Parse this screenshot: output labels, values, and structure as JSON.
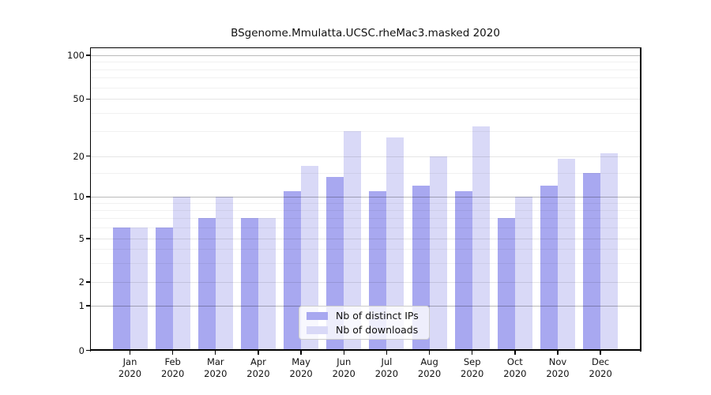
{
  "title": "BSgenome.Mmulatta.UCSC.rheMac3.masked 2020",
  "colors": {
    "distinct_ips": "#a8a8f0",
    "downloads": "#d9d9f7",
    "spine": "#000000",
    "legend_border": "#cccccc"
  },
  "legend": {
    "items": [
      {
        "label": "Nb of distinct IPs",
        "swatch": "distinct-ips-swatch"
      },
      {
        "label": "Nb of downloads",
        "swatch": "downloads-swatch"
      }
    ]
  },
  "y_axis": {
    "tick_labels": [
      "100",
      "50",
      "20",
      "10",
      "5",
      "2",
      "1",
      "0"
    ],
    "tick_values": [
      100,
      50,
      20,
      10,
      5,
      2,
      1,
      0
    ]
  },
  "x_axis": {
    "months": [
      "Jan",
      "Feb",
      "Mar",
      "Apr",
      "May",
      "Jun",
      "Jul",
      "Aug",
      "Sep",
      "Oct",
      "Nov",
      "Dec"
    ],
    "year": "2020"
  },
  "chart_data": {
    "type": "bar",
    "title": "BSgenome.Mmulatta.UCSC.rheMac3.masked 2020",
    "categories": [
      "Jan 2020",
      "Feb 2020",
      "Mar 2020",
      "Apr 2020",
      "May 2020",
      "Jun 2020",
      "Jul 2020",
      "Aug 2020",
      "Sep 2020",
      "Oct 2020",
      "Nov 2020",
      "Dec 2020"
    ],
    "series": [
      {
        "name": "Nb of distinct IPs",
        "color": "#a8a8f0",
        "values": [
          6,
          6,
          7,
          7,
          11,
          14,
          11,
          12,
          11,
          7,
          12,
          15
        ]
      },
      {
        "name": "Nb of downloads",
        "color": "#d9d9f7",
        "values": [
          6,
          10,
          10,
          7,
          17,
          30,
          27,
          20,
          32,
          10,
          19,
          21
        ]
      }
    ],
    "xlabel": "",
    "ylabel": "",
    "y_scale": "log-like (compressed below 2, includes 0 baseline)",
    "y_ticks": [
      0,
      1,
      2,
      5,
      10,
      20,
      50,
      100
    ],
    "decade_gridlines": [
      1,
      10,
      100
    ],
    "minor_gridlines": [
      3,
      4,
      6,
      7,
      8,
      9,
      15,
      30,
      40,
      60,
      70,
      80,
      90
    ],
    "ylim": [
      0,
      110
    ],
    "grid": true,
    "legend_position": "bottom-center"
  }
}
